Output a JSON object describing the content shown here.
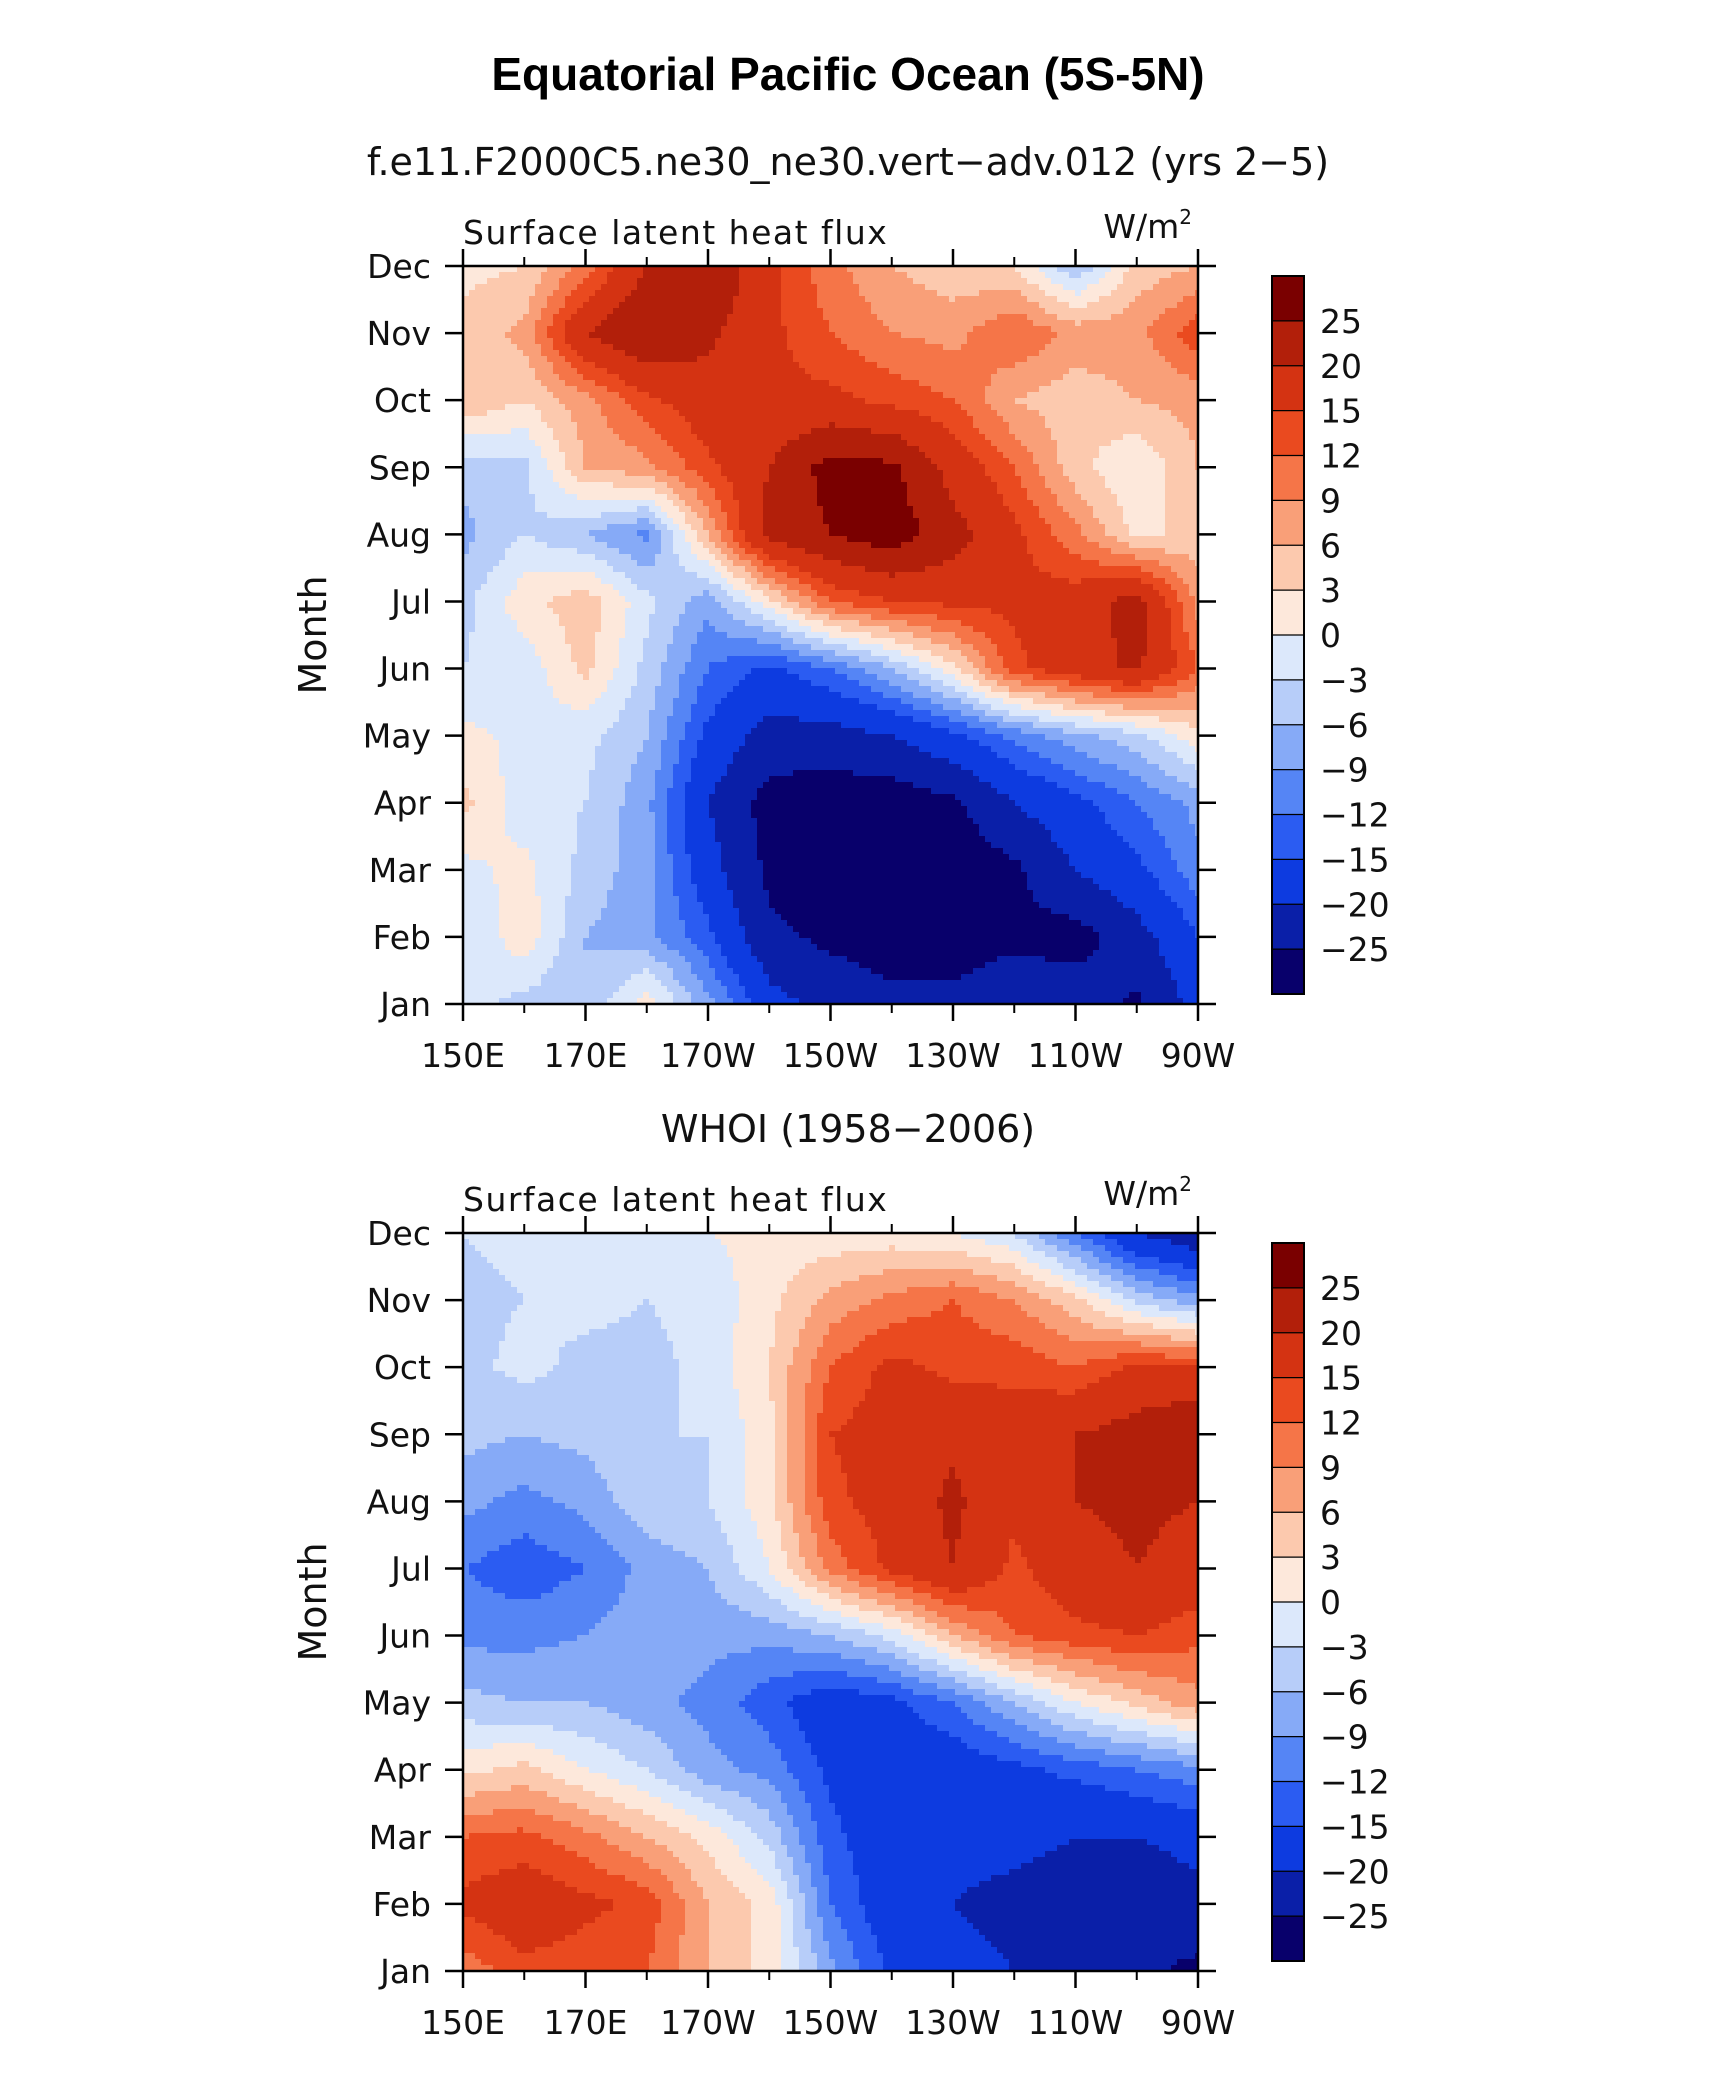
{
  "figure": {
    "title": "Equatorial Pacific Ocean (5S-5N)"
  },
  "colorbar": {
    "levels": [
      -25,
      -20,
      -15,
      -12,
      -9,
      -6,
      -3,
      0,
      3,
      6,
      9,
      12,
      15,
      20,
      25
    ],
    "labels": [
      "25",
      "20",
      "15",
      "12",
      "9",
      "6",
      "3",
      "0",
      "−3",
      "−6",
      "−9",
      "−12",
      "−15",
      "−20",
      "−25"
    ],
    "colors": [
      "#08006b",
      "#0a1fa8",
      "#0d3be0",
      "#2b5cf2",
      "#5585f5",
      "#86aaf7",
      "#b7cdf9",
      "#dce8fb",
      "#fde8db",
      "#fcc9ae",
      "#f99f78",
      "#f57548",
      "#ea4a1f",
      "#d43312",
      "#b21f0a",
      "#7a0000"
    ]
  },
  "chart_data": [
    {
      "type": "heatmap",
      "title": "f.e11.F2000C5.ne30_ne30.vert−adv.012 (yrs 2−5)",
      "left_string": "Surface latent heat flux",
      "units_base": "W/m",
      "units_exp": "2",
      "xlabel": "",
      "ylabel": "Month",
      "xticks": [
        "150E",
        "170E",
        "170W",
        "150W",
        "130W",
        "110W",
        "90W"
      ],
      "yticks": [
        "Jan",
        "Feb",
        "Mar",
        "Apr",
        "May",
        "Jun",
        "Jul",
        "Aug",
        "Sep",
        "Oct",
        "Nov",
        "Dec"
      ],
      "xlim": [
        150,
        270
      ],
      "x": [
        150,
        160,
        170,
        180,
        190,
        200,
        210,
        220,
        230,
        240,
        250,
        260,
        270
      ],
      "y": [
        "Jan",
        "Feb",
        "Mar",
        "Apr",
        "May",
        "Jun",
        "Jul",
        "Aug",
        "Sep",
        "Oct",
        "Nov",
        "Dec"
      ],
      "z": [
        [
          -2,
          -4,
          -6,
          2,
          -8,
          -18,
          -22,
          -24,
          -24,
          -22,
          -22,
          -26,
          -18
        ],
        [
          -3,
          2,
          -6,
          -8,
          -14,
          -24,
          -26,
          -27,
          -27,
          -26,
          -27,
          -22,
          -15
        ],
        [
          -1,
          1,
          -4,
          -8,
          -18,
          -26,
          -28,
          -28,
          -28,
          -26,
          -20,
          -16,
          -10
        ],
        [
          4,
          -2,
          -3,
          -8,
          -20,
          -27,
          -28,
          -28,
          -26,
          -20,
          -16,
          -12,
          -8
        ],
        [
          1,
          -1,
          -2,
          -6,
          -16,
          -22,
          -22,
          -20,
          -16,
          -11,
          -7,
          -4,
          2
        ],
        [
          -3,
          -2,
          4,
          -4,
          -12,
          -16,
          -12,
          -6,
          2,
          14,
          18,
          21,
          12
        ],
        [
          -4,
          2,
          5,
          -2,
          -8,
          2,
          12,
          15,
          16,
          16,
          17,
          22,
          8
        ],
        [
          -7,
          -3,
          -6,
          -10,
          6,
          22,
          25,
          28,
          22,
          16,
          10,
          2,
          4
        ],
        [
          -5,
          -4,
          6,
          8,
          14,
          20,
          27,
          26,
          18,
          12,
          4,
          0,
          6
        ],
        [
          6,
          3,
          8,
          14,
          18,
          16,
          16,
          14,
          12,
          6,
          4,
          6,
          7
        ],
        [
          4,
          7,
          20,
          25,
          21,
          16,
          12,
          9,
          8,
          12,
          8,
          8,
          14
        ],
        [
          2,
          3,
          10,
          20,
          25,
          16,
          10,
          6,
          4,
          3,
          -6,
          4,
          6
        ]
      ]
    },
    {
      "type": "heatmap",
      "title": "WHOI (1958−2006)",
      "left_string": "Surface latent heat flux",
      "units_base": "W/m",
      "units_exp": "2",
      "xlabel": "",
      "ylabel": "Month",
      "xticks": [
        "150E",
        "170E",
        "170W",
        "150W",
        "130W",
        "110W",
        "90W"
      ],
      "yticks": [
        "Jan",
        "Feb",
        "Mar",
        "Apr",
        "May",
        "Jun",
        "Jul",
        "Aug",
        "Sep",
        "Oct",
        "Nov",
        "Dec"
      ],
      "xlim": [
        150,
        270
      ],
      "x": [
        150,
        160,
        170,
        180,
        190,
        200,
        210,
        220,
        230,
        240,
        250,
        260,
        270
      ],
      "y": [
        "Jan",
        "Feb",
        "Mar",
        "Apr",
        "May",
        "Jun",
        "Jul",
        "Aug",
        "Sep",
        "Oct",
        "Nov",
        "Dec"
      ],
      "z": [
        [
          10,
          14,
          13,
          12,
          6,
          2,
          -8,
          -16,
          -18,
          -20,
          -22,
          -24,
          -26
        ],
        [
          16,
          18,
          16,
          14,
          6,
          2,
          -12,
          -18,
          -20,
          -22,
          -24,
          -24,
          -22
        ],
        [
          12,
          13,
          10,
          6,
          2,
          -4,
          -14,
          -18,
          -18,
          -18,
          -20,
          -20,
          -18
        ],
        [
          2,
          4,
          0,
          -3,
          -8,
          -10,
          -16,
          -18,
          -18,
          -16,
          -14,
          -12,
          -10
        ],
        [
          -5,
          -6,
          -6,
          -8,
          -10,
          -14,
          -18,
          -16,
          -12,
          -6,
          0,
          4,
          8
        ],
        [
          -10,
          -10,
          -9,
          -7,
          -8,
          -8,
          -6,
          -2,
          6,
          12,
          14,
          15,
          13
        ],
        [
          -12,
          -14,
          -12,
          -8,
          -6,
          0,
          10,
          16,
          20,
          14,
          18,
          20,
          18
        ],
        [
          -8,
          -10,
          -8,
          -4,
          -3,
          2,
          14,
          17,
          21,
          16,
          20,
          21,
          20
        ],
        [
          -5,
          -6,
          -5,
          -3,
          -3,
          2,
          15,
          17,
          19,
          17,
          20,
          22,
          25
        ],
        [
          -4,
          -2,
          -4,
          -4,
          -2,
          3,
          12,
          16,
          14,
          14,
          12,
          16,
          15
        ],
        [
          -4,
          -3,
          -2,
          -3,
          -2,
          2,
          7,
          10,
          12,
          9,
          4,
          -4,
          -8
        ],
        [
          -3,
          -2,
          0,
          0,
          0,
          1,
          1,
          1,
          0,
          -3,
          -12,
          -20,
          -24
        ]
      ]
    }
  ]
}
